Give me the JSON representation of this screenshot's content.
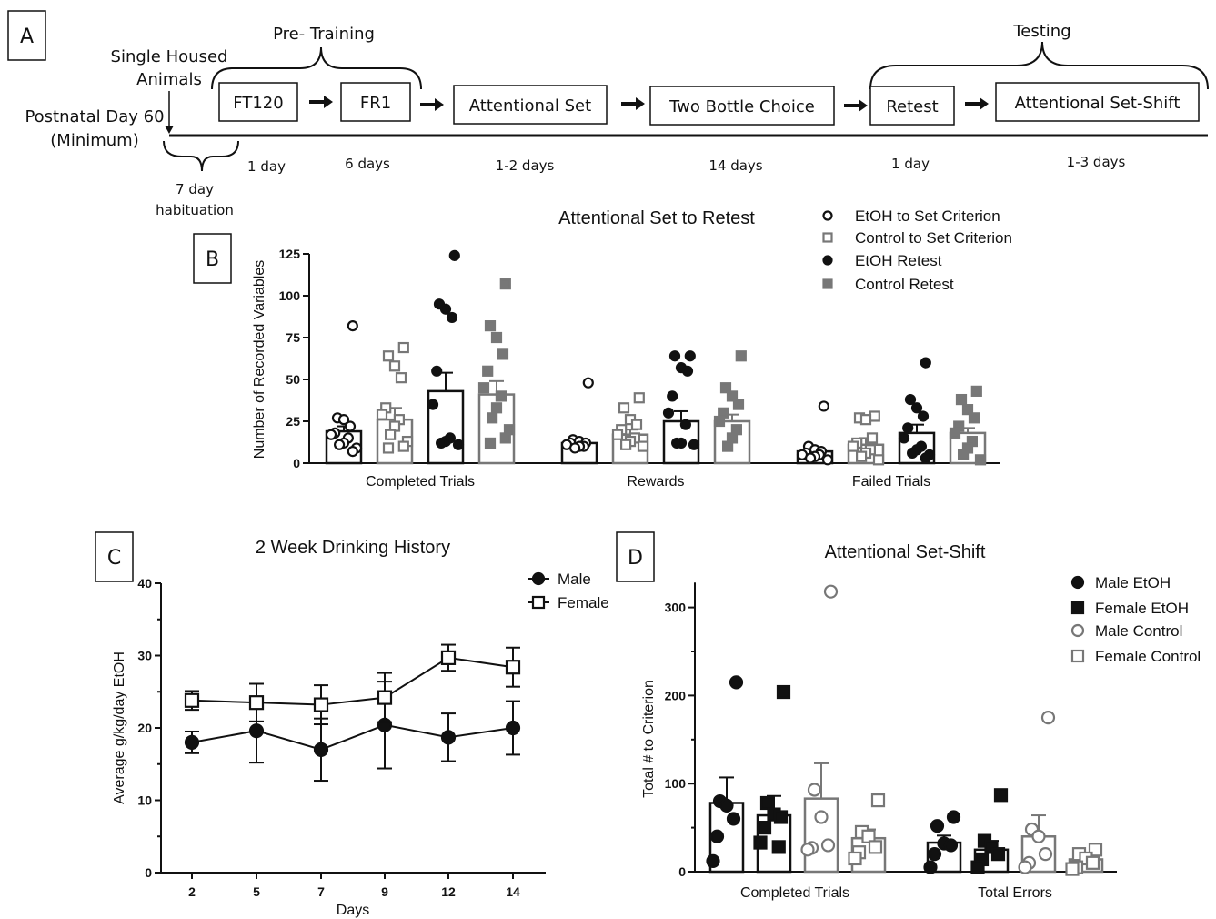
{
  "panel_a": {
    "label": "A",
    "single_housed_line1": "Single Housed",
    "single_housed_line2": "Animals",
    "postnatal_line1": "Postnatal Day 60",
    "postnatal_line2": "(Minimum)",
    "habituation_line1": "7 day",
    "habituation_line2": "habituation",
    "pretraining_label": "Pre- Training",
    "testing_label": "Testing",
    "steps": [
      {
        "label": "FT120",
        "duration": "1 day"
      },
      {
        "label": "FR1",
        "duration": "6 days"
      },
      {
        "label": "Attentional Set",
        "duration": "1-2 days"
      },
      {
        "label": "Two Bottle Choice",
        "duration": "14 days"
      },
      {
        "label": "Retest",
        "duration": "1 day"
      },
      {
        "label": "Attentional Set-Shift",
        "duration": "1-3 days"
      }
    ]
  },
  "panel_labels": {
    "b": "B",
    "c": "C",
    "d": "D"
  },
  "chart_data": [
    {
      "panel": "B",
      "type": "bar",
      "title": "Attentional Set to Retest",
      "ylabel": "Number of Recorded Variables",
      "ylim": [
        0,
        125
      ],
      "yticks": [
        "0",
        "25",
        "50",
        "75",
        "100",
        "125"
      ],
      "categories": [
        "Completed Trials",
        "Rewards",
        "Failed Trials"
      ],
      "legend_position": "top-right",
      "series": [
        {
          "name": "EtOH to Set Criterion",
          "marker": "open-circle",
          "color": "#111111",
          "values": [
            19,
            12,
            7
          ],
          "sem": [
            3,
            0,
            1.5
          ],
          "points": [
            [
              82,
              27,
              26,
              22,
              18,
              17,
              15,
              12,
              11,
              9,
              7
            ],
            [
              48,
              14,
              13,
              12,
              12,
              11,
              10,
              10,
              9
            ],
            [
              34,
              10,
              8,
              7,
              6,
              5,
              5,
              4,
              3,
              2
            ]
          ]
        },
        {
          "name": "Control to Set Criterion",
          "marker": "open-square",
          "color": "#777777",
          "values": [
            26,
            17,
            11
          ],
          "sem": [
            7,
            3,
            4
          ],
          "points": [
            [
              69,
              64,
              58,
              51,
              33,
              29,
              26,
              22,
              17,
              13,
              10,
              9
            ],
            [
              39,
              33,
              26,
              23,
              20,
              17,
              15,
              13,
              11,
              10
            ],
            [
              28,
              27,
              26,
              15,
              12,
              10,
              8,
              6,
              4,
              2
            ]
          ]
        },
        {
          "name": "EtOH Retest",
          "marker": "filled-circle",
          "color": "#111111",
          "values": [
            43,
            25,
            18
          ],
          "sem": [
            11,
            6,
            5
          ],
          "points": [
            [
              124,
              95,
              92,
              87,
              55,
              35,
              15,
              13,
              12,
              11
            ],
            [
              64,
              64,
              57,
              55,
              40,
              30,
              23,
              12,
              12,
              11
            ],
            [
              60,
              38,
              33,
              28,
              21,
              15,
              10,
              8,
              6,
              5,
              3
            ]
          ]
        },
        {
          "name": "Control Retest",
          "marker": "filled-square",
          "color": "#777777",
          "values": [
            41,
            25,
            18
          ],
          "sem": [
            8,
            4,
            3
          ],
          "points": [
            [
              107,
              82,
              75,
              65,
              55,
              45,
              40,
              33,
              27,
              20,
              15,
              12
            ],
            [
              64,
              45,
              40,
              35,
              30,
              25,
              20,
              15,
              10
            ],
            [
              43,
              38,
              32,
              27,
              22,
              18,
              13,
              9,
              5,
              2
            ]
          ]
        }
      ]
    },
    {
      "panel": "C",
      "type": "line",
      "title": "2 Week Drinking History",
      "xlabel": "Days",
      "ylabel": "Average g/kg/day EtOH",
      "x": [
        2,
        5,
        7,
        9,
        12,
        14
      ],
      "xticks": [
        "2",
        "5",
        "7",
        "9",
        "12",
        "14"
      ],
      "ylim": [
        0,
        40
      ],
      "yticks": [
        "0",
        "10",
        "20",
        "30",
        "40"
      ],
      "legend_position": "top-right",
      "series": [
        {
          "name": "Male",
          "marker": "filled-circle",
          "color": "#111111",
          "values": [
            18.0,
            19.6,
            17.0,
            20.4,
            18.7,
            20.0
          ],
          "sem": [
            1.5,
            4.4,
            4.3,
            6.0,
            3.3,
            3.7
          ]
        },
        {
          "name": "Female",
          "marker": "open-square",
          "color": "#111111",
          "values": [
            23.8,
            23.5,
            23.2,
            24.2,
            29.7,
            28.4
          ],
          "sem": [
            1.3,
            2.6,
            2.7,
            3.4,
            1.8,
            2.7
          ]
        }
      ]
    },
    {
      "panel": "D",
      "type": "bar",
      "title": "Attentional Set-Shift",
      "ylabel": "Total # to Criterion",
      "ylim": [
        0,
        320
      ],
      "yticks": [
        "0",
        "100",
        "200",
        "300"
      ],
      "categories": [
        "Completed Trials",
        "Total Errors"
      ],
      "legend_position": "top-right",
      "series": [
        {
          "name": "Male EtOH",
          "marker": "filled-circle",
          "color": "#111111",
          "values": [
            78,
            33
          ],
          "sem": [
            29,
            8
          ],
          "points": [
            [
              215,
              80,
              75,
              60,
              40,
              12
            ],
            [
              62,
              52,
              32,
              30,
              20,
              5
            ]
          ]
        },
        {
          "name": "Female EtOH",
          "marker": "filled-square",
          "color": "#111111",
          "values": [
            64,
            25
          ],
          "sem": [
            22,
            10
          ],
          "points": [
            [
              204,
              78,
              65,
              62,
              50,
              33,
              28
            ],
            [
              87,
              35,
              28,
              20,
              14,
              5
            ]
          ]
        },
        {
          "name": "Male Control",
          "marker": "open-circle",
          "color": "#777777",
          "values": [
            83,
            40
          ],
          "sem": [
            40,
            24
          ],
          "points": [
            [
              318,
              93,
              62,
              30,
              27,
              25
            ],
            [
              175,
              48,
              40,
              20,
              10,
              5
            ]
          ]
        },
        {
          "name": "Female Control",
          "marker": "open-square",
          "color": "#777777",
          "values": [
            38,
            14
          ],
          "sem": [
            10,
            5
          ],
          "points": [
            [
              81,
              45,
              40,
              28,
              22,
              15
            ],
            [
              25,
              20,
              15,
              10,
              5,
              3
            ]
          ]
        }
      ]
    }
  ]
}
